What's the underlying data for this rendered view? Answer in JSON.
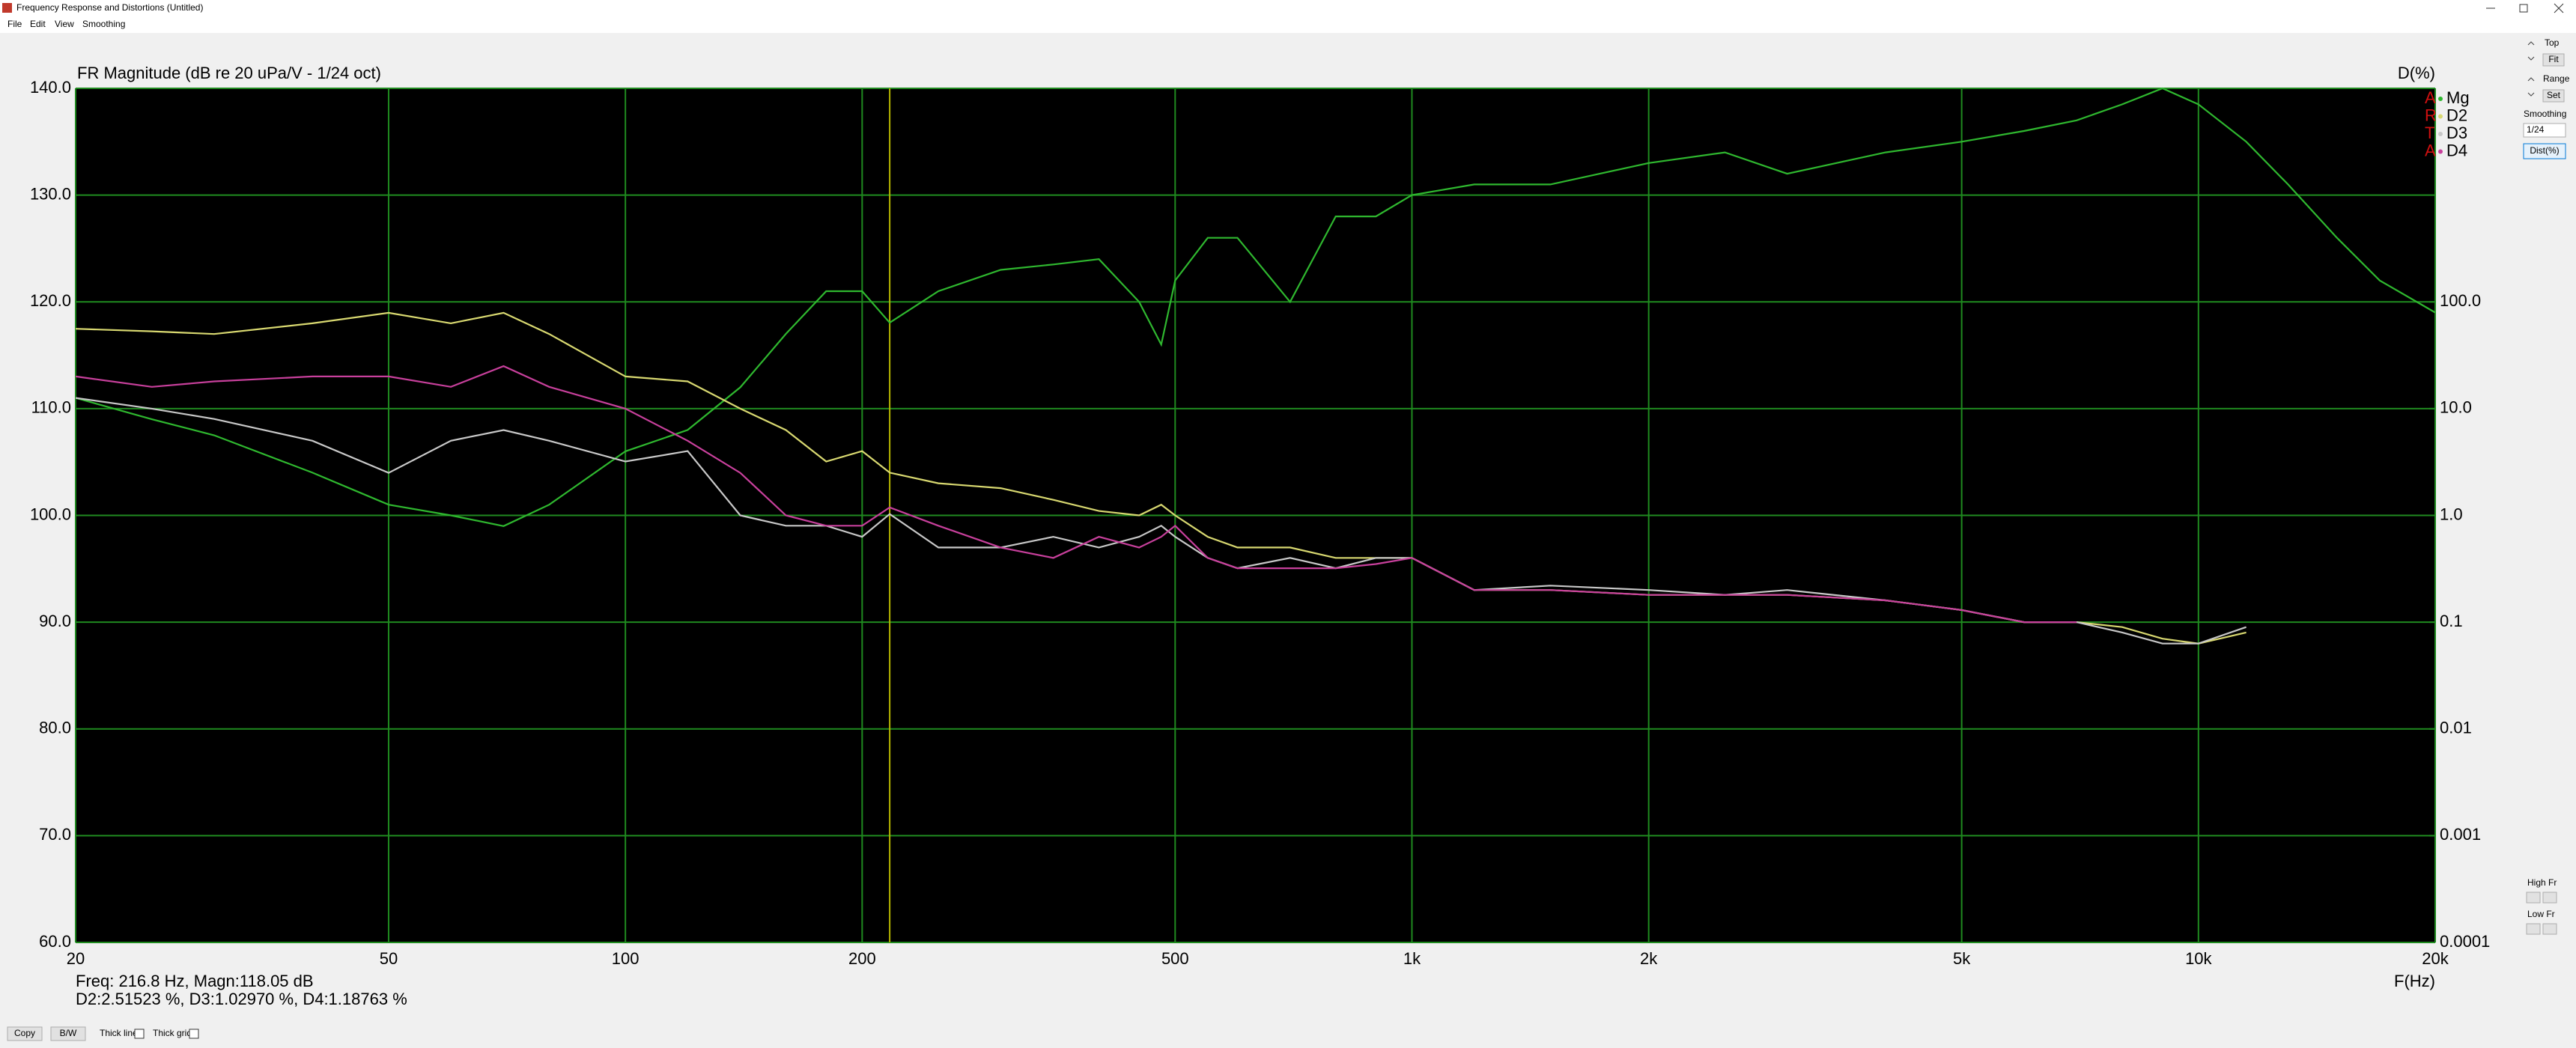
{
  "window": {
    "title": "Frequency Response and Distortions (Untitled)",
    "menu": [
      "File",
      "Edit",
      "View",
      "Smoothing"
    ]
  },
  "side_panel": {
    "top": "Top",
    "fit": "Fit",
    "range": "Range",
    "set": "Set",
    "smoothing": "Smoothing",
    "smoothing_value": "1/24",
    "dist": "Dist(%)",
    "high_fr": "High Fr",
    "low_fr": "Low Fr"
  },
  "toolbar": {
    "copy": "Copy",
    "bw": "B/W",
    "thick_line": "Thick line",
    "thick_grid": "Thick grid"
  },
  "chart_data": {
    "type": "line",
    "title": "FR Magnitude (dB re 20 uPa/V - 1/24 oct)",
    "y2_label": "D(%)",
    "x_label": "F(Hz)",
    "readout": [
      "Freq: 216.8 Hz, Magn:118.05 dB",
      "D2:2.51523 %, D3:1.02970 %, D4:1.18763 %"
    ],
    "cursor": 216.8,
    "watermark": [
      "A",
      "R",
      "T",
      "A"
    ],
    "xlog": true,
    "y2log": true,
    "grid": true,
    "legend": "top-right",
    "xlim": [
      20,
      20000
    ],
    "xticks": [
      20,
      50,
      100,
      200,
      500,
      {
        "value": 1000,
        "label": "1k"
      },
      {
        "value": 2000,
        "label": "2k"
      },
      {
        "value": 5000,
        "label": "5k"
      },
      {
        "value": 10000,
        "label": "10k"
      },
      {
        "value": 20000,
        "label": "20k"
      }
    ],
    "ylim": [
      60,
      140
    ],
    "yticks": [
      {
        "value": 60,
        "label": "60.0"
      },
      {
        "value": 70,
        "label": "70.0"
      },
      {
        "value": 80,
        "label": "80.0"
      },
      {
        "value": 90,
        "label": "90.0"
      },
      {
        "value": 100,
        "label": "100.0"
      },
      {
        "value": 110,
        "label": "110.0"
      },
      {
        "value": 120,
        "label": "120.0"
      },
      {
        "value": 130,
        "label": "130.0"
      },
      {
        "value": 140,
        "label": "140.0"
      }
    ],
    "y2lim": [
      0.0001,
      10000
    ],
    "y2ticks": [
      0.0001,
      0.001,
      0.01,
      0.1,
      {
        "value": 1,
        "label": "1.0"
      },
      {
        "value": 10,
        "label": "10.0"
      },
      {
        "value": 100,
        "label": "100.0"
      }
    ],
    "x": [
      20,
      25,
      30,
      40,
      50,
      60,
      70,
      80,
      100,
      120,
      140,
      160,
      180,
      200,
      216.8,
      250,
      300,
      350,
      400,
      450,
      480,
      500,
      550,
      600,
      700,
      800,
      900,
      1000,
      1200,
      1500,
      2000,
      2500,
      3000,
      4000,
      5000,
      6000,
      7000,
      8000,
      9000,
      10000,
      11500,
      13000,
      15000,
      17000,
      20000
    ],
    "series": [
      {
        "name": "Mg",
        "color": "#2fb82f",
        "values": [
          111,
          109,
          107.5,
          104,
          101,
          100,
          99,
          101,
          106,
          108,
          112,
          117,
          121,
          121,
          118.05,
          121,
          123,
          123.5,
          124,
          120,
          116,
          122,
          126,
          126,
          120,
          128,
          128,
          130,
          131,
          131,
          133,
          134,
          132,
          134,
          135,
          136,
          137,
          138.5,
          140,
          138.5,
          135,
          131,
          126,
          122,
          119
        ]
      },
      {
        "name": "D2",
        "color": "#d8d870",
        "axis": "y2",
        "values": [
          56,
          53,
          50,
          63,
          79,
          63,
          79,
          50,
          20,
          18,
          10,
          6.3,
          3.2,
          4,
          2.51523,
          2,
          1.8,
          1.4,
          1.1,
          1,
          1.26,
          1,
          0.63,
          0.5,
          0.5,
          0.4,
          0.4,
          0.4,
          0.2,
          0.2,
          0.18,
          0.18,
          0.18,
          0.16,
          0.13,
          0.1,
          0.1,
          0.09,
          0.07,
          0.063,
          0.08,
          null,
          null,
          null,
          null
        ]
      },
      {
        "name": "D3",
        "color": "#c8c8c8",
        "axis": "y2",
        "values": [
          12.6,
          10,
          8,
          5,
          2.5,
          5,
          6.3,
          5,
          3.2,
          4,
          1,
          0.8,
          0.8,
          0.63,
          1.0297,
          0.5,
          0.5,
          0.63,
          0.5,
          0.63,
          0.8,
          0.63,
          0.4,
          0.32,
          0.4,
          0.32,
          0.4,
          0.4,
          0.2,
          0.22,
          0.2,
          0.18,
          0.2,
          0.16,
          0.13,
          0.1,
          0.1,
          0.08,
          0.063,
          0.063,
          0.09,
          null,
          null,
          null,
          null
        ]
      },
      {
        "name": "D4",
        "color": "#c8409c",
        "axis": "y2",
        "values": [
          20,
          16,
          18,
          20,
          20,
          16,
          25,
          16,
          10,
          5,
          2.5,
          1,
          0.8,
          0.8,
          1.18763,
          0.8,
          0.5,
          0.4,
          0.63,
          0.5,
          0.63,
          0.8,
          0.4,
          0.32,
          0.32,
          0.32,
          0.35,
          0.4,
          0.2,
          0.2,
          0.18,
          0.18,
          0.18,
          0.16,
          0.13,
          0.1,
          0.1,
          null,
          null,
          null,
          null,
          null,
          null,
          null,
          null
        ]
      }
    ]
  }
}
